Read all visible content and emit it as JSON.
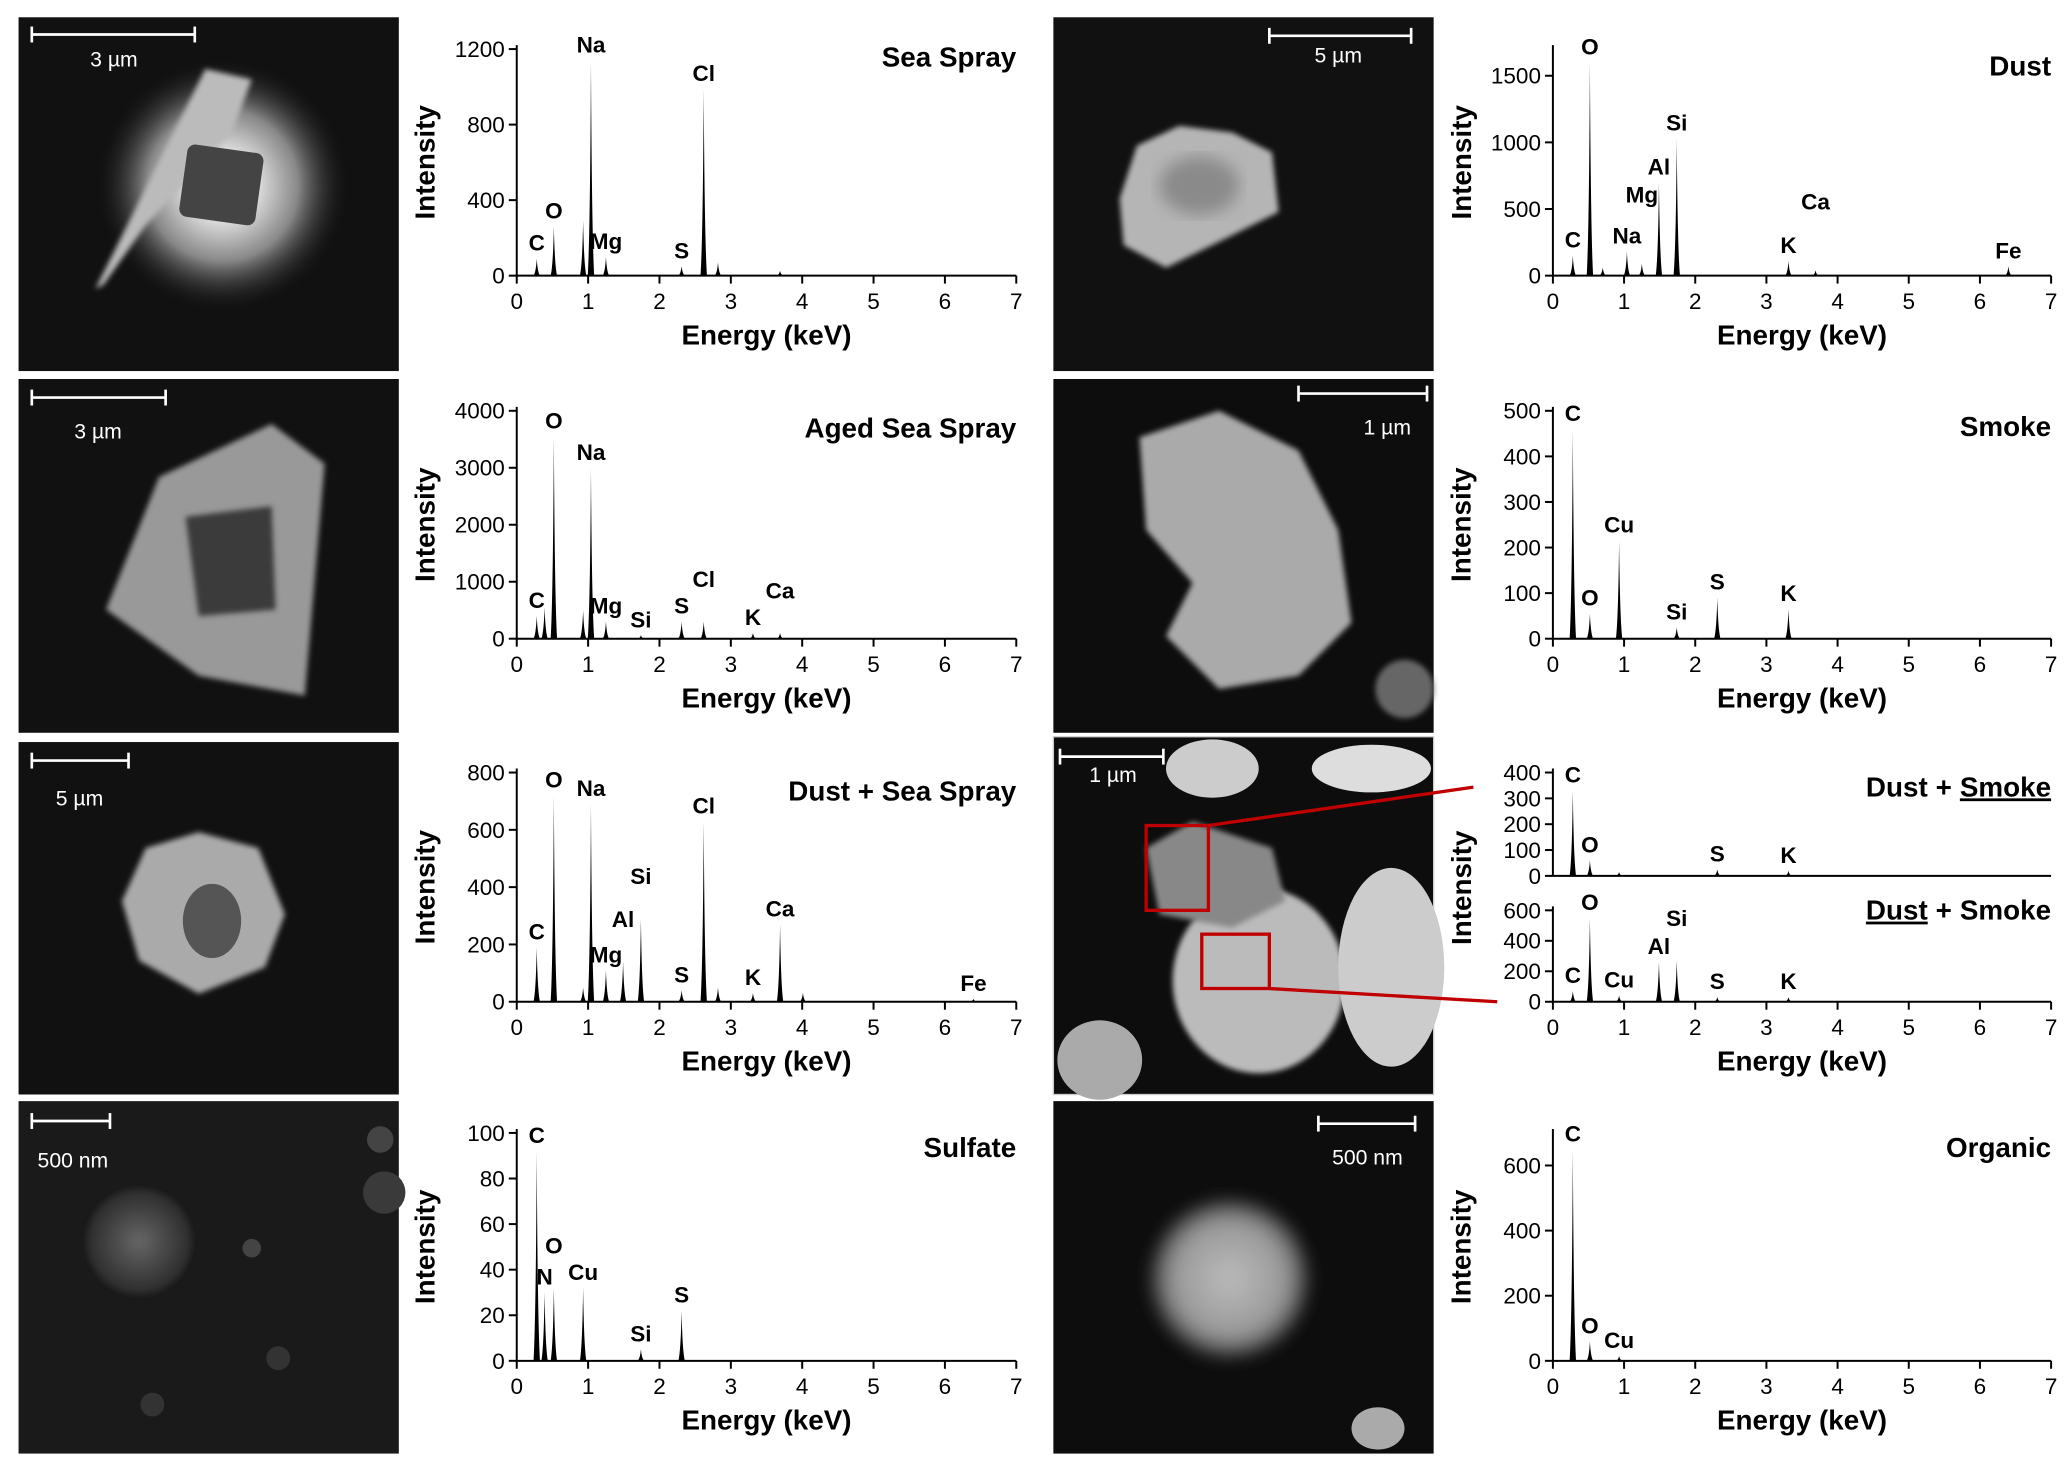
{
  "micrographs": [
    {
      "scale_bar": "3 µm"
    },
    {
      "scale_bar": "5 µm"
    },
    {
      "scale_bar": "3 µm"
    },
    {
      "scale_bar": "1 µm"
    },
    {
      "scale_bar": "5 µm"
    },
    {
      "scale_bar": "1 µm"
    },
    {
      "scale_bar": "500 nm"
    },
    {
      "scale_bar": "500 nm"
    }
  ],
  "chart_data": [
    {
      "type": "spectrum",
      "title": "Sea Spray",
      "xlabel": "Energy (keV)",
      "ylabel": "Intensity",
      "color": "#000000",
      "x": [
        0.28,
        0.52,
        0.93,
        1.04,
        1.25,
        2.31,
        2.62,
        2.82,
        3.69
      ],
      "values": [
        90,
        260,
        290,
        1140,
        100,
        50,
        990,
        70,
        25
      ],
      "peak_labels": [
        "C",
        "O",
        null,
        "Na",
        "Mg",
        "S",
        "Cl",
        null,
        null
      ],
      "xlim": [
        0,
        7
      ],
      "xticks": [
        0,
        1,
        2,
        3,
        4,
        5,
        6,
        7
      ],
      "ylim": [
        0,
        1200
      ],
      "yticks": [
        0,
        400,
        800,
        1200
      ]
    },
    {
      "type": "spectrum",
      "title": "Dust",
      "xlabel": "Energy (keV)",
      "ylabel": "Intensity",
      "color": "#000000",
      "x": [
        0.28,
        0.52,
        0.7,
        1.04,
        1.25,
        1.49,
        1.74,
        3.31,
        3.69,
        6.4
      ],
      "values": [
        150,
        1600,
        60,
        180,
        90,
        700,
        1030,
        110,
        40,
        70
      ],
      "peak_labels": [
        "C",
        "O",
        null,
        "Na",
        "Mg",
        "Al",
        "Si",
        "K",
        "Ca",
        "Fe"
      ],
      "xlim": [
        0,
        7
      ],
      "xticks": [
        0,
        1,
        2,
        3,
        4,
        5,
        6,
        7
      ],
      "ylim": [
        0,
        1700
      ],
      "yticks": [
        0,
        500,
        1000,
        1500
      ]
    },
    {
      "type": "spectrum",
      "title": "Aged Sea Spray",
      "xlabel": "Energy (keV)",
      "ylabel": "Intensity",
      "color": "#000000",
      "x": [
        0.28,
        0.39,
        0.52,
        0.93,
        1.04,
        1.25,
        1.74,
        2.31,
        2.62,
        3.31,
        3.69
      ],
      "values": [
        400,
        550,
        3550,
        500,
        3000,
        300,
        60,
        300,
        300,
        100,
        100
      ],
      "peak_labels": [
        "C",
        null,
        "O",
        null,
        "Na",
        "Mg",
        "Si",
        "S",
        "Cl",
        "K",
        "Ca"
      ],
      "xlim": [
        0,
        7
      ],
      "xticks": [
        0,
        1,
        2,
        3,
        4,
        5,
        6,
        7
      ],
      "ylim": [
        0,
        4000
      ],
      "yticks": [
        0,
        1000,
        2000,
        3000,
        4000
      ]
    },
    {
      "type": "spectrum",
      "title": "Smoke",
      "xlabel": "Energy (keV)",
      "ylabel": "Intensity",
      "color": "#000000",
      "x": [
        0.28,
        0.52,
        0.93,
        1.74,
        2.31,
        3.31
      ],
      "values": [
        460,
        55,
        215,
        25,
        90,
        65
      ],
      "peak_labels": [
        "C",
        "O",
        "Cu",
        "Si",
        "S",
        "K"
      ],
      "xlim": [
        0,
        7
      ],
      "xticks": [
        0,
        1,
        2,
        3,
        4,
        5,
        6,
        7
      ],
      "ylim": [
        0,
        500
      ],
      "yticks": [
        0,
        100,
        200,
        300,
        400,
        500
      ]
    },
    {
      "type": "spectrum",
      "title": "Dust + Sea Spray",
      "xlabel": "Energy (keV)",
      "ylabel": "Intensity",
      "color": "#000000",
      "x": [
        0.28,
        0.52,
        0.93,
        1.04,
        1.25,
        1.49,
        1.74,
        2.31,
        2.62,
        2.82,
        3.31,
        3.69,
        4.01,
        6.4
      ],
      "values": [
        190,
        720,
        50,
        690,
        110,
        140,
        290,
        40,
        630,
        50,
        30,
        270,
        30,
        10
      ],
      "peak_labels": [
        "C",
        "O",
        null,
        "Na",
        "Mg",
        "Al",
        "Si",
        "S",
        "Cl",
        null,
        "K",
        "Ca",
        null,
        "Fe"
      ],
      "xlim": [
        0,
        7
      ],
      "xticks": [
        0,
        1,
        2,
        3,
        4,
        5,
        6,
        7
      ],
      "ylim": [
        0,
        800
      ],
      "yticks": [
        0,
        200,
        400,
        600,
        800
      ]
    },
    {
      "type": "spectrum",
      "title": [
        "Dust",
        "+",
        "Smoke"
      ],
      "underline": 2,
      "color": "#000000",
      "x": [
        0.28,
        0.52,
        0.93,
        2.31,
        3.31
      ],
      "values": [
        330,
        60,
        15,
        25,
        20
      ],
      "peak_labels": [
        "C",
        "O",
        null,
        "S",
        "K"
      ],
      "xlim": [
        0,
        7
      ],
      "ylim": [
        0,
        400
      ],
      "yticks": [
        0,
        100,
        200,
        300,
        400
      ]
    },
    {
      "type": "spectrum",
      "title": [
        "Dust",
        "+",
        "Smoke"
      ],
      "underline": 0,
      "xlabel": "Energy (keV)",
      "ylabel": "Intensity",
      "color": "#000000",
      "x": [
        0.28,
        0.52,
        0.93,
        1.49,
        1.74,
        2.31,
        3.31
      ],
      "values": [
        70,
        550,
        40,
        260,
        270,
        30,
        30
      ],
      "peak_labels": [
        "C",
        "O",
        "Cu",
        "Al",
        "Si",
        "S",
        "K"
      ],
      "xlim": [
        0,
        7
      ],
      "xticks": [
        0,
        1,
        2,
        3,
        4,
        5,
        6,
        7
      ],
      "ylim": [
        0,
        600
      ],
      "yticks": [
        0,
        200,
        400,
        600
      ]
    },
    {
      "type": "spectrum",
      "title": "Sulfate",
      "xlabel": "Energy (keV)",
      "ylabel": "Intensity",
      "color": "#000000",
      "x": [
        0.28,
        0.39,
        0.52,
        0.93,
        1.74,
        2.31
      ],
      "values": [
        92,
        30,
        32,
        32,
        5,
        22
      ],
      "peak_labels": [
        "C",
        "N",
        "O",
        "Cu",
        "Si",
        "S"
      ],
      "xlim": [
        0,
        7
      ],
      "xticks": [
        0,
        1,
        2,
        3,
        4,
        5,
        6,
        7
      ],
      "ylim": [
        0,
        100
      ],
      "yticks": [
        0,
        20,
        40,
        60,
        80,
        100
      ]
    },
    {
      "type": "spectrum",
      "title": "Organic",
      "xlabel": "Energy (keV)",
      "ylabel": "Intensity",
      "color": "#000000",
      "x": [
        0.28,
        0.52,
        0.93
      ],
      "values": [
        650,
        60,
        15
      ],
      "peak_labels": [
        "C",
        "O",
        "Cu"
      ],
      "xlim": [
        0,
        7
      ],
      "xticks": [
        0,
        1,
        2,
        3,
        4,
        5,
        6,
        7
      ],
      "ylim": [
        0,
        700
      ],
      "yticks": [
        0,
        200,
        400,
        600
      ]
    }
  ]
}
